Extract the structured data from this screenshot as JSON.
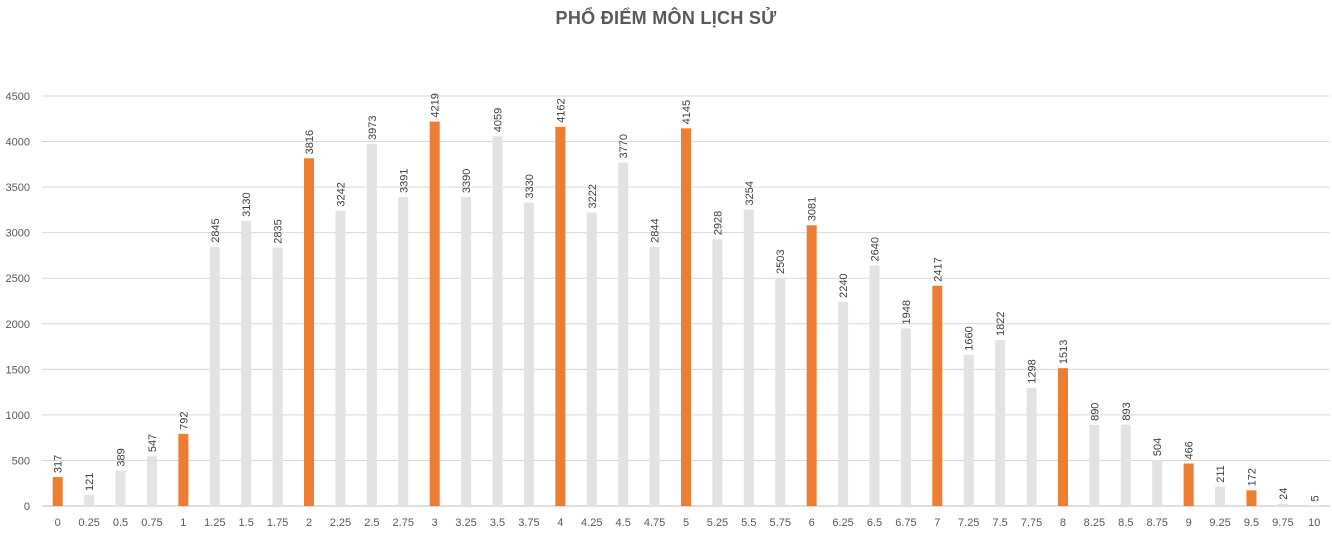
{
  "chart_data": {
    "type": "bar",
    "title": "PHỔ ĐIỂM MÔN LỊCH SỬ",
    "xlabel": "",
    "ylabel": "",
    "ylim": [
      0,
      4500
    ],
    "yticks": [
      0,
      500,
      1000,
      1500,
      2000,
      2500,
      3000,
      3500,
      4000,
      4500
    ],
    "grid": true,
    "colors": {
      "highlight": "#ED7D31",
      "normal": "#E3E3E3",
      "grid": "#D9D9D9",
      "axis": "#BFBFBF"
    },
    "highlight_categories": [
      "0",
      "1",
      "2",
      "3",
      "4",
      "5",
      "6",
      "7",
      "8",
      "9",
      "9.5"
    ],
    "categories": [
      "0",
      "0.25",
      "0.5",
      "0.75",
      "1",
      "1.25",
      "1.5",
      "1.75",
      "2",
      "2.25",
      "2.5",
      "2.75",
      "3",
      "3.25",
      "3.5",
      "3.75",
      "4",
      "4.25",
      "4.5",
      "4.75",
      "5",
      "5.25",
      "5.5",
      "5.75",
      "6",
      "6.25",
      "6.5",
      "6.75",
      "7",
      "7.25",
      "7.5",
      "7.75",
      "8",
      "8.25",
      "8.5",
      "8.75",
      "9",
      "9.25",
      "9.5",
      "9.75",
      "10"
    ],
    "values": [
      317,
      121,
      389,
      547,
      792,
      2845,
      3130,
      2835,
      3816,
      3242,
      3973,
      3391,
      4219,
      3390,
      4059,
      3330,
      4162,
      3222,
      3770,
      2844,
      4145,
      2928,
      3254,
      2503,
      3081,
      2240,
      2640,
      1948,
      2417,
      1660,
      1822,
      1298,
      1513,
      890,
      893,
      504,
      466,
      211,
      172,
      24,
      5
    ]
  }
}
